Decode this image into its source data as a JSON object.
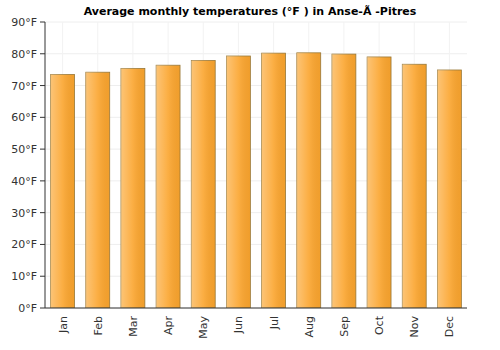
{
  "chart_data": {
    "type": "bar",
    "title": "Average monthly temperatures (°F ) in Anse-Ã -Pitres",
    "categories": [
      "Jan",
      "Feb",
      "Mar",
      "Apr",
      "May",
      "Jun",
      "Jul",
      "Aug",
      "Sep",
      "Oct",
      "Nov",
      "Dec"
    ],
    "values": [
      73.5,
      74.2,
      75.4,
      76.4,
      77.9,
      79.3,
      80.2,
      80.3,
      79.9,
      79.0,
      76.7,
      74.9
    ],
    "color": "#fba52e",
    "ylim": [
      0,
      90
    ],
    "yticks": [
      {
        "value": 0,
        "label": "0°F"
      },
      {
        "value": 10,
        "label": "10°F"
      },
      {
        "value": 20,
        "label": "20°F"
      },
      {
        "value": 30,
        "label": "30°F"
      },
      {
        "value": 40,
        "label": "40°F"
      },
      {
        "value": 50,
        "label": "50°F"
      },
      {
        "value": 60,
        "label": "60°F"
      },
      {
        "value": 70,
        "label": "70°F"
      },
      {
        "value": 80,
        "label": "80°F"
      },
      {
        "value": 90,
        "label": "90°F"
      }
    ],
    "grid": true
  }
}
